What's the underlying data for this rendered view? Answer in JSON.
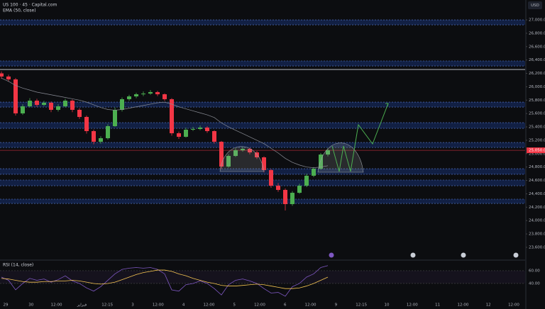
{
  "chart_data": {
    "type": "candlestick",
    "title": "US 100 · 45 · Capital.com",
    "indicator": "EMA (50, close)",
    "currency": "USD",
    "ylim": [
      23430,
      27297
    ],
    "yticks": [
      {
        "value": 23600,
        "label": "23,600.0"
      },
      {
        "value": 23800,
        "label": "23,800.0"
      },
      {
        "value": 24000,
        "label": "24,000.0"
      },
      {
        "value": 24200,
        "label": "24,200.0"
      },
      {
        "value": 24400,
        "label": "24,400.0"
      },
      {
        "value": 24600,
        "label": "24,600.0"
      },
      {
        "value": 24800,
        "label": "24,800.0"
      },
      {
        "value": 25000,
        "label": "25,000.0"
      },
      {
        "value": 25200,
        "label": "25,200.0"
      },
      {
        "value": 25400,
        "label": "25,400.0"
      },
      {
        "value": 25600,
        "label": "25,600.0"
      },
      {
        "value": 25800,
        "label": "25,800.0"
      },
      {
        "value": 26000,
        "label": "26,000.0"
      },
      {
        "value": 26200,
        "label": "26,200.0"
      },
      {
        "value": 26400,
        "label": "26,400.0"
      },
      {
        "value": 26600,
        "label": "26,600.0"
      },
      {
        "value": 26800,
        "label": "26,800.0"
      },
      {
        "value": 27000,
        "label": "27,000.0"
      }
    ],
    "x_labels": [
      "29",
      "30",
      "12:00",
      "فبراير",
      "12:15",
      "3",
      "12:00",
      "4",
      "12:00",
      "5",
      "12:00",
      "6",
      "12:00",
      "9",
      "12:15",
      "10",
      "12:00",
      "11",
      "12:00",
      "12",
      "12:00"
    ],
    "candles": [
      [
        26200,
        26230,
        26120,
        26153
      ],
      [
        26153,
        26180,
        26080,
        26110
      ],
      [
        26110,
        26130,
        25570,
        25602
      ],
      [
        25602,
        25740,
        25580,
        25708
      ],
      [
        25708,
        25830,
        25690,
        25792
      ],
      [
        25792,
        25820,
        25700,
        25729
      ],
      [
        25729,
        25790,
        25710,
        25761
      ],
      [
        25761,
        25780,
        25620,
        25655
      ],
      [
        25655,
        25740,
        25630,
        25708
      ],
      [
        25708,
        25820,
        25690,
        25792
      ],
      [
        25792,
        25810,
        25620,
        25655
      ],
      [
        25655,
        25680,
        25520,
        25549
      ],
      [
        25549,
        25570,
        25300,
        25337
      ],
      [
        25337,
        25360,
        25140,
        25178
      ],
      [
        25178,
        25260,
        25150,
        25231
      ],
      [
        25231,
        25440,
        25210,
        25411
      ],
      [
        25411,
        25690,
        25400,
        25655
      ],
      [
        25655,
        25840,
        25630,
        25814
      ],
      [
        25814,
        25880,
        25790,
        25856
      ],
      [
        25856,
        25910,
        25830,
        25888
      ],
      [
        25888,
        25930,
        25860,
        25898
      ],
      [
        25898,
        25950,
        25880,
        25920
      ],
      [
        25920,
        25940,
        25860,
        25888
      ],
      [
        25888,
        25900,
        25790,
        25814
      ],
      [
        25814,
        25830,
        25270,
        25305
      ],
      [
        25305,
        25330,
        25220,
        25252
      ],
      [
        25252,
        25390,
        25240,
        25358
      ],
      [
        25358,
        25400,
        25340,
        25369
      ],
      [
        25369,
        25420,
        25350,
        25390
      ],
      [
        25390,
        25410,
        25310,
        25337
      ],
      [
        25337,
        25350,
        25150,
        25178
      ],
      [
        25178,
        25190,
        24770,
        24807
      ],
      [
        24807,
        24990,
        24790,
        24966
      ],
      [
        24966,
        25080,
        24950,
        25051
      ],
      [
        25051,
        25100,
        25030,
        25072
      ],
      [
        25072,
        25090,
        24990,
        25019
      ],
      [
        25019,
        25040,
        24920,
        24945
      ],
      [
        24945,
        24960,
        24720,
        24754
      ],
      [
        24754,
        24770,
        24490,
        24521
      ],
      [
        24521,
        24560,
        24430,
        24458
      ],
      [
        24458,
        24480,
        24150,
        24246
      ],
      [
        24246,
        24440,
        24220,
        24415
      ],
      [
        24415,
        24550,
        24400,
        24521
      ],
      [
        24521,
        24700,
        24500,
        24670
      ],
      [
        24670,
        24800,
        24650,
        24775
      ],
      [
        24775,
        25010,
        24760,
        24987
      ],
      [
        24987,
        25080,
        24960,
        25051
      ]
    ],
    "ema": [
      26130,
      26080,
      26020,
      25980,
      25950,
      25920,
      25900,
      25880,
      25860,
      25840,
      25820,
      25800,
      25770,
      25730,
      25690,
      25660,
      25650,
      25660,
      25680,
      25700,
      25720,
      25740,
      25760,
      25770,
      25740,
      25700,
      25670,
      25640,
      25610,
      25580,
      25540,
      25460,
      25400,
      25350,
      25300,
      25250,
      25200,
      25150,
      25080,
      25010,
      24930,
      24870,
      24830,
      24800,
      24790,
      24800,
      24820
    ],
    "zones": [
      [
        26926,
        27000
      ],
      [
        26311,
        26386
      ],
      [
        25697,
        25771
      ],
      [
        25379,
        25464
      ],
      [
        25093,
        25167
      ],
      [
        24691,
        24775
      ],
      [
        24521,
        24606
      ],
      [
        24256,
        24320
      ]
    ],
    "level": 26258,
    "current_price": {
      "value": 25050,
      "label": "25,050.0"
    },
    "up_color": "#4caf50",
    "down_color": "#f23645",
    "ema_color": "#8a8d96",
    "zone_color": "#2962ff",
    "rsi": {
      "title": "RSI (14, close)",
      "ylim": [
        4.4,
        73.3
      ],
      "yticks": [
        {
          "value": 60,
          "label": "60.00"
        },
        {
          "value": 40,
          "label": "40.00"
        }
      ],
      "color": "#7e57c2",
      "ma_color": "#f5c451",
      "values": [
        50,
        45,
        30,
        40,
        48,
        45,
        47,
        42,
        46,
        52,
        44,
        40,
        33,
        28,
        35,
        45,
        55,
        62,
        64,
        65,
        64,
        65,
        62,
        55,
        30,
        28,
        38,
        40,
        44,
        40,
        32,
        22,
        38,
        45,
        47,
        44,
        40,
        32,
        25,
        26,
        20,
        35,
        40,
        50,
        55,
        65,
        68
      ],
      "ma": [
        48,
        47,
        45,
        43,
        42,
        42,
        43,
        43,
        44,
        44,
        45,
        44,
        42,
        40,
        39,
        40,
        42,
        46,
        50,
        54,
        57,
        59,
        61,
        61,
        59,
        55,
        52,
        48,
        45,
        42,
        40,
        37,
        36,
        36,
        37,
        38,
        39,
        38,
        36,
        34,
        32,
        32,
        33,
        36,
        40,
        45,
        50
      ]
    }
  }
}
